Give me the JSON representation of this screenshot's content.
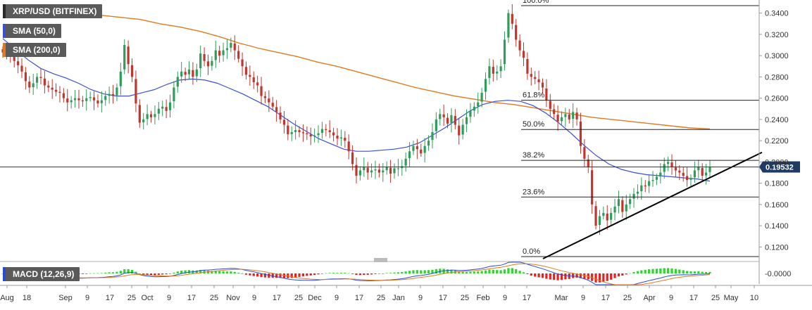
{
  "chart_data": {
    "type": "candlestick",
    "title": "XRP/USD (BITFINEX)",
    "indicators": [
      {
        "name": "SMA (50,0)",
        "color": "#3a4fd6"
      },
      {
        "name": "SMA (200,0)",
        "color": "#e07a1f"
      }
    ],
    "last_price": "0.19532",
    "price_axis": {
      "ylim": [
        0.109,
        0.351
      ],
      "ticks": [
        "0.1200",
        "0.1400",
        "0.1600",
        "0.1800",
        "0.2000",
        "0.2200",
        "0.2400",
        "0.2600",
        "0.2800",
        "0.3000",
        "0.3200",
        "0.3400"
      ]
    },
    "time_axis": {
      "labels": [
        "Aug",
        "18",
        "Sep",
        "9",
        "17",
        "25",
        "Oct",
        "9",
        "17",
        "25",
        "Nov",
        "9",
        "17",
        "25",
        "Dec",
        "9",
        "17",
        "25",
        "Jan",
        "9",
        "17",
        "25",
        "Feb",
        "9",
        "17",
        "Mar",
        "9",
        "17",
        "25",
        "Apr",
        "9",
        "17",
        "25",
        "May",
        "10"
      ]
    },
    "fibonacci": [
      {
        "label": "100.0%",
        "price": 0.347
      },
      {
        "label": "61.8%",
        "price": 0.258
      },
      {
        "label": "50.0%",
        "price": 0.2305
      },
      {
        "label": "38.2%",
        "price": 0.2015
      },
      {
        "label": "23.6%",
        "price": 0.167
      },
      {
        "label": "0.0%",
        "price": 0.111
      }
    ],
    "trendline": {
      "from": [
        "Feb 27",
        0.109
      ],
      "to": [
        "May 12",
        0.209
      ],
      "color": "#000000"
    },
    "price_series": [
      0.303,
      0.302,
      0.3,
      0.295,
      0.291,
      0.285,
      0.276,
      0.27,
      0.274,
      0.28,
      0.279,
      0.272,
      0.27,
      0.268,
      0.266,
      0.265,
      0.26,
      0.256,
      0.258,
      0.26,
      0.258,
      0.257,
      0.26,
      0.261,
      0.258,
      0.255,
      0.258,
      0.262,
      0.264,
      0.262,
      0.27,
      0.285,
      0.31,
      0.292,
      0.28,
      0.255,
      0.237,
      0.24,
      0.245,
      0.242,
      0.245,
      0.25,
      0.252,
      0.248,
      0.256,
      0.27,
      0.28,
      0.285,
      0.282,
      0.287,
      0.28,
      0.287,
      0.302,
      0.295,
      0.29,
      0.295,
      0.305,
      0.3,
      0.305,
      0.307,
      0.312,
      0.305,
      0.297,
      0.29,
      0.282,
      0.28,
      0.275,
      0.272,
      0.262,
      0.26,
      0.256,
      0.252,
      0.247,
      0.24,
      0.235,
      0.226,
      0.228,
      0.23,
      0.228,
      0.227,
      0.226,
      0.224,
      0.225,
      0.227,
      0.231,
      0.23,
      0.228,
      0.225,
      0.222,
      0.223,
      0.22,
      0.21,
      0.198,
      0.187,
      0.192,
      0.195,
      0.19,
      0.192,
      0.193,
      0.19,
      0.192,
      0.195,
      0.189,
      0.194,
      0.194,
      0.196,
      0.203,
      0.21,
      0.215,
      0.212,
      0.208,
      0.215,
      0.22,
      0.228,
      0.24,
      0.245,
      0.242,
      0.236,
      0.244,
      0.235,
      0.225,
      0.235,
      0.242,
      0.248,
      0.252,
      0.256,
      0.265,
      0.278,
      0.29,
      0.283,
      0.285,
      0.29,
      0.315,
      0.34,
      0.33,
      0.315,
      0.305,
      0.298,
      0.283,
      0.28,
      0.278,
      0.275,
      0.27,
      0.258,
      0.25,
      0.245,
      0.238,
      0.242,
      0.245,
      0.24,
      0.247,
      0.24,
      0.215,
      0.203,
      0.195,
      0.16,
      0.14,
      0.149,
      0.152,
      0.145,
      0.152,
      0.158,
      0.165,
      0.153,
      0.16,
      0.165,
      0.17,
      0.172,
      0.178,
      0.177,
      0.182,
      0.183,
      0.186,
      0.19,
      0.198,
      0.2,
      0.195,
      0.192,
      0.19,
      0.187,
      0.183,
      0.185,
      0.192,
      0.195,
      0.187,
      0.19,
      0.1953
    ],
    "sma50_series": [
      0.316,
      0.306,
      0.296,
      0.288,
      0.283,
      0.279,
      0.274,
      0.268,
      0.264,
      0.262,
      0.262,
      0.265,
      0.268,
      0.273,
      0.277,
      0.278,
      0.277,
      0.274,
      0.269,
      0.264,
      0.258,
      0.252,
      0.244,
      0.236,
      0.229,
      0.222,
      0.217,
      0.212,
      0.21,
      0.21,
      0.211,
      0.212,
      0.214,
      0.218,
      0.225,
      0.232,
      0.24,
      0.248,
      0.254,
      0.257,
      0.258,
      0.257,
      0.253,
      0.246,
      0.237,
      0.227,
      0.216,
      0.206,
      0.198,
      0.193,
      0.19,
      0.188,
      0.187,
      0.186,
      0.185,
      0.184,
      0.182
    ],
    "sma200_series": [
      0.347,
      0.346,
      0.344,
      0.342,
      0.34,
      0.338,
      0.336,
      0.334,
      0.33,
      0.327,
      0.323,
      0.318,
      0.312,
      0.307,
      0.303,
      0.299,
      0.294,
      0.29,
      0.285,
      0.28,
      0.275,
      0.27,
      0.266,
      0.262,
      0.259,
      0.256,
      0.254,
      0.251,
      0.248,
      0.245,
      0.242,
      0.24,
      0.238,
      0.236,
      0.234,
      0.232,
      0.231
    ],
    "macd": {
      "label": "MACD (12,26,9)",
      "axis_label": "-0.0000"
    }
  },
  "colors": {
    "bull": "#2f9c5a",
    "bear": "#c2352c",
    "hist_up": "#29d829",
    "hist_down": "#e52222",
    "macd_line": "#2a4bd7",
    "signal_line": "#e07a1f",
    "last_price_bg": "#1f3a63"
  }
}
